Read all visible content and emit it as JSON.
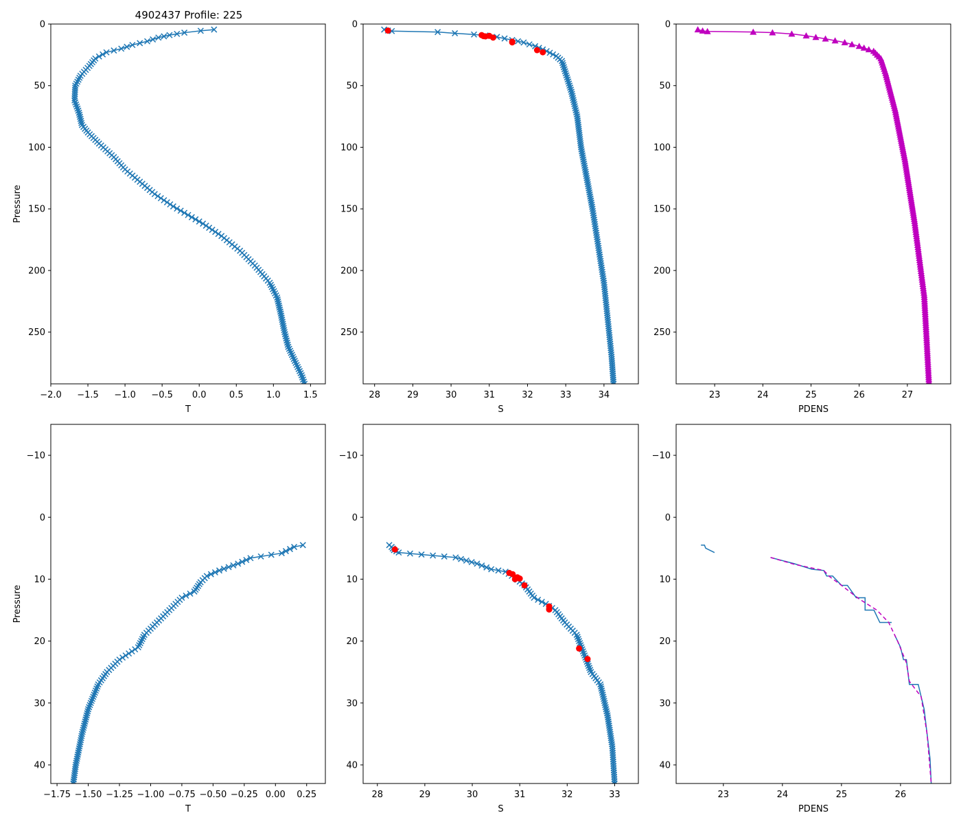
{
  "figure": {
    "title": "4902437 Profile: 225"
  },
  "colors": {
    "series": "#1f77b4",
    "flag": "#ff0000",
    "density": "#bf00bf",
    "axis": "#000000"
  },
  "chart_data": [
    {
      "id": "t-full",
      "type": "line",
      "marker": "x",
      "title": "4902437 Profile: 225",
      "xlabel": "T",
      "ylabel": "Pressure",
      "xlim": [
        -2.0,
        1.7
      ],
      "ylim": [
        292,
        0
      ],
      "grid": false,
      "xticks": [
        -2.0,
        -1.5,
        -1.0,
        -0.5,
        0.0,
        0.5,
        1.0,
        1.5
      ],
      "xtick_labels": [
        "−2.0",
        "−1.5",
        "−1.0",
        "−0.5",
        "0.0",
        "0.5",
        "1.0",
        "1.5"
      ],
      "yticks": [
        0,
        50,
        100,
        150,
        200,
        250
      ],
      "ytick_labels": [
        "0",
        "50",
        "100",
        "150",
        "200",
        "250"
      ],
      "series": [
        {
          "name": "T",
          "color": "#1f77b4",
          "marker": "x",
          "x": [
            0.2,
            0.02,
            -0.2,
            -0.4,
            -0.55,
            -0.7,
            -0.9,
            -1.05,
            -1.25,
            -1.4,
            -1.48,
            -1.6,
            -1.67,
            -1.68,
            -1.62,
            -1.58,
            -1.5,
            -1.35,
            -1.15,
            -1.0,
            -0.8,
            -0.6,
            -0.35,
            -0.15,
            0.05,
            0.3,
            0.55,
            0.75,
            0.95,
            1.05,
            1.1,
            1.15,
            1.2,
            1.3,
            1.38,
            1.42
          ],
          "y": [
            4.5,
            5.5,
            7,
            9,
            11,
            14,
            17,
            20,
            23,
            28,
            34,
            42,
            50,
            62,
            72,
            82,
            88,
            97,
            108,
            118,
            128,
            138,
            148,
            155,
            162,
            172,
            184,
            196,
            210,
            222,
            235,
            250,
            262,
            275,
            285,
            292
          ]
        }
      ]
    },
    {
      "id": "s-full",
      "type": "line",
      "marker": "x",
      "xlabel": "S",
      "ylabel": "",
      "xlim": [
        27.7,
        34.9
      ],
      "ylim": [
        292,
        0
      ],
      "grid": false,
      "xticks": [
        28,
        29,
        30,
        31,
        32,
        33,
        34
      ],
      "xtick_labels": [
        "28",
        "29",
        "30",
        "31",
        "32",
        "33",
        "34"
      ],
      "yticks": [
        0,
        50,
        100,
        150,
        200,
        250
      ],
      "ytick_labels": [
        "0",
        "50",
        "100",
        "150",
        "200",
        "250"
      ],
      "series": [
        {
          "name": "S",
          "color": "#1f77b4",
          "marker": "x",
          "x": [
            28.25,
            28.35,
            28.45,
            29.65,
            30.1,
            30.6,
            30.9,
            31.2,
            31.6,
            31.9,
            32.2,
            32.5,
            32.75,
            32.9,
            33.0,
            33.15,
            33.3,
            33.4,
            33.55,
            33.7,
            33.85,
            34.0,
            34.1,
            34.2,
            34.25
          ],
          "y": [
            4.5,
            5.3,
            5.7,
            6.5,
            7.5,
            8.5,
            9.3,
            10.5,
            13,
            15,
            18,
            22,
            26,
            30,
            40,
            55,
            75,
            100,
            125,
            150,
            180,
            210,
            240,
            270,
            292
          ]
        }
      ],
      "flags": {
        "name": "flagged",
        "color": "#ff0000",
        "x": [
          28.35,
          30.8,
          30.85,
          30.9,
          31.0,
          31.1,
          31.6,
          31.6,
          32.25,
          32.4
        ],
        "y": [
          5.3,
          9.0,
          9.8,
          10.0,
          9.6,
          11.0,
          14.3,
          14.9,
          21.2,
          22.9
        ]
      }
    },
    {
      "id": "pdens-full",
      "type": "line",
      "marker": "^",
      "xlabel": "PDENS",
      "ylabel": "",
      "xlim": [
        22.2,
        27.9
      ],
      "ylim": [
        292,
        0
      ],
      "grid": false,
      "xticks": [
        23,
        24,
        25,
        26,
        27
      ],
      "xtick_labels": [
        "23",
        "24",
        "25",
        "26",
        "27"
      ],
      "yticks": [
        0,
        50,
        100,
        150,
        200,
        250
      ],
      "ytick_labels": [
        "0",
        "50",
        "100",
        "150",
        "200",
        "250"
      ],
      "series": [
        {
          "name": "PDENS",
          "color": "#bf00bf",
          "marker": "^",
          "x": [
            22.65,
            22.75,
            22.85,
            23.8,
            24.2,
            24.6,
            24.9,
            25.3,
            25.7,
            26.0,
            26.3,
            26.45,
            26.55,
            26.65,
            26.75,
            26.85,
            26.95,
            27.05,
            27.15,
            27.25,
            27.35,
            27.4,
            27.45
          ],
          "y": [
            4.5,
            5.5,
            6,
            6.5,
            7,
            8,
            9.5,
            12,
            15,
            18,
            22,
            28,
            40,
            55,
            70,
            90,
            110,
            135,
            160,
            190,
            220,
            255,
            292
          ]
        }
      ]
    },
    {
      "id": "t-zoom",
      "type": "line",
      "marker": "x",
      "xlabel": "T",
      "ylabel": "Pressure",
      "xlim": [
        -1.8,
        0.4
      ],
      "ylim": [
        43,
        -15
      ],
      "grid": false,
      "xticks": [
        -1.75,
        -1.5,
        -1.25,
        -1.0,
        -0.75,
        -0.5,
        -0.25,
        0.0,
        0.25
      ],
      "xtick_labels": [
        "−1.75",
        "−1.50",
        "−1.25",
        "−1.00",
        "−0.75",
        "−0.50",
        "−0.25",
        "0.00",
        "0.25"
      ],
      "yticks": [
        -10,
        0,
        10,
        20,
        30,
        40
      ],
      "ytick_labels": [
        "−10",
        "0",
        "10",
        "20",
        "30",
        "40"
      ],
      "series": [
        {
          "name": "T",
          "color": "#1f77b4",
          "marker": "x",
          "x": [
            0.22,
            0.15,
            0.05,
            -0.2,
            -0.3,
            -0.45,
            -0.55,
            -0.6,
            -0.65,
            -0.75,
            -0.85,
            -0.95,
            -1.05,
            -1.1,
            -1.25,
            -1.35,
            -1.42,
            -1.5,
            -1.55,
            -1.6,
            -1.62
          ],
          "y": [
            4.5,
            4.8,
            5.8,
            6.6,
            7.5,
            8.6,
            9.5,
            10.5,
            12,
            13,
            15,
            17,
            19,
            21,
            23,
            25,
            27,
            31,
            35,
            40,
            43
          ]
        }
      ]
    },
    {
      "id": "s-zoom",
      "type": "line",
      "marker": "x",
      "xlabel": "S",
      "ylabel": "",
      "xlim": [
        27.7,
        33.5
      ],
      "ylim": [
        43,
        -15
      ],
      "grid": false,
      "xticks": [
        28,
        29,
        30,
        31,
        32,
        33
      ],
      "xtick_labels": [
        "28",
        "29",
        "30",
        "31",
        "32",
        "33"
      ],
      "yticks": [
        -10,
        0,
        10,
        20,
        30,
        40
      ],
      "ytick_labels": [
        "−10",
        "0",
        "10",
        "20",
        "30",
        "40"
      ],
      "series": [
        {
          "name": "S",
          "color": "#1f77b4",
          "marker": "x",
          "x": [
            28.25,
            28.3,
            28.35,
            28.45,
            29.65,
            30.1,
            30.4,
            30.7,
            30.9,
            31.1,
            31.3,
            31.55,
            31.75,
            31.95,
            32.2,
            32.35,
            32.5,
            32.7,
            32.85,
            32.95,
            33.0
          ],
          "y": [
            4.5,
            4.8,
            5.3,
            5.7,
            6.5,
            7.5,
            8.4,
            8.8,
            9.8,
            11,
            13,
            14,
            15,
            17,
            19,
            22,
            25,
            27,
            32,
            37,
            43
          ]
        }
      ],
      "flags": {
        "name": "flagged",
        "color": "#ff0000",
        "x": [
          28.37,
          30.78,
          30.85,
          30.9,
          30.95,
          31.0,
          31.1,
          31.62,
          31.62,
          32.25,
          32.43
        ],
        "y": [
          5.2,
          9.0,
          9.2,
          10.0,
          9.7,
          9.9,
          11.0,
          14.4,
          14.9,
          21.2,
          22.9
        ]
      }
    },
    {
      "id": "pdens-zoom",
      "type": "line",
      "marker": "none",
      "xlabel": "PDENS",
      "ylabel": "",
      "xlim": [
        22.2,
        26.85
      ],
      "ylim": [
        43,
        -15
      ],
      "grid": false,
      "xticks": [
        23,
        24,
        25,
        26
      ],
      "xtick_labels": [
        "23",
        "24",
        "25",
        "26"
      ],
      "yticks": [
        -10,
        0,
        10,
        20,
        30,
        40
      ],
      "ytick_labels": [
        "−10",
        "0",
        "10",
        "20",
        "30",
        "40"
      ],
      "segments": [
        {
          "color": "#1f77b4",
          "x": [
            22.62,
            22.68,
            22.7,
            22.85
          ],
          "y": [
            4.5,
            4.5,
            5.0,
            5.7
          ]
        },
        {
          "color": "#1f77b4",
          "x": [
            23.8,
            24.2,
            24.5,
            24.7,
            24.75,
            24.85,
            24.9,
            25.0,
            25.1,
            25.25,
            25.4,
            25.4,
            25.55,
            25.65,
            25.85
          ],
          "y": [
            6.5,
            7.5,
            8.4,
            8.6,
            9.5,
            9.5,
            10.0,
            11.0,
            11.0,
            13.0,
            13.0,
            15.0,
            15.0,
            17.0,
            17.0
          ]
        },
        {
          "color": "#1f77b4",
          "x": [
            25.9,
            26.0,
            26.05,
            26.1,
            26.15,
            26.3,
            26.35,
            26.4,
            26.45,
            26.5,
            26.52
          ],
          "y": [
            19.0,
            21.0,
            23.0,
            23.0,
            27.0,
            27.0,
            29.0,
            31.0,
            35.0,
            39.0,
            43.0
          ]
        }
      ],
      "overlay": {
        "color": "#bf00bf",
        "style": "dashed",
        "x": [
          23.8,
          24.2,
          24.7,
          24.8,
          25.0,
          25.3,
          25.6,
          25.8,
          25.95,
          26.1,
          26.15,
          26.35,
          26.45,
          26.52
        ],
        "y": [
          6.5,
          7.6,
          8.6,
          9.6,
          11.0,
          13.2,
          15.0,
          17.0,
          20.0,
          23.5,
          26.5,
          29.0,
          35.0,
          43.0
        ]
      }
    }
  ]
}
